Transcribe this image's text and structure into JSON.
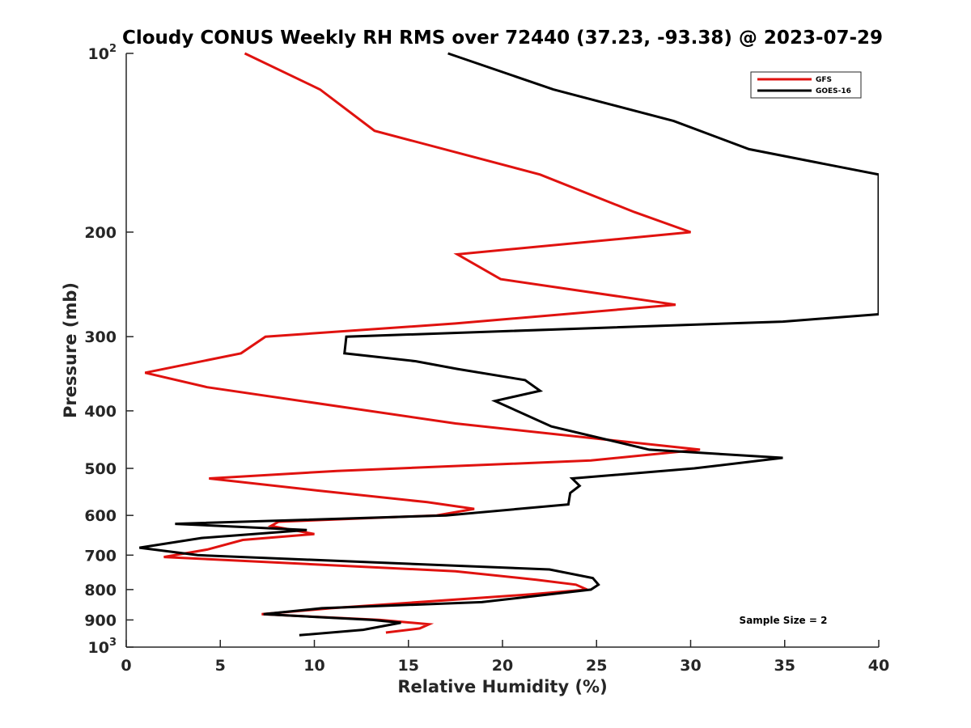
{
  "chart_data": {
    "type": "line",
    "title": "Cloudy CONUS Weekly RH RMS over 72440 (37.23, -93.38) @ 2023-07-29",
    "xlabel": "Relative Humidity (%)",
    "ylabel": "Pressure (mb)",
    "xlim": [
      0,
      40
    ],
    "ylim": [
      100,
      1000
    ],
    "y_scale": "log",
    "y_reversed": true,
    "grid": false,
    "legend_position": "top-right",
    "x_ticks": [
      0,
      5,
      10,
      15,
      20,
      25,
      30,
      35,
      40
    ],
    "y_ticks": [
      {
        "value": 100,
        "base": "10",
        "exp": "2"
      },
      {
        "value": 200,
        "label": "200"
      },
      {
        "value": 300,
        "label": "300"
      },
      {
        "value": 400,
        "label": "400"
      },
      {
        "value": 500,
        "label": "500"
      },
      {
        "value": 600,
        "label": "600"
      },
      {
        "value": 700,
        "label": "700"
      },
      {
        "value": 800,
        "label": "800"
      },
      {
        "value": 900,
        "label": "900"
      },
      {
        "value": 1000,
        "base": "10",
        "exp": "3"
      }
    ],
    "series": [
      {
        "name": "GFS",
        "color": "#e0120f",
        "x": [
          6.3,
          10.3,
          13.2,
          22,
          27,
          30,
          17.6,
          19.9,
          29.2,
          17.5,
          7.4,
          6.1,
          1.0,
          4.3,
          17.5,
          30.5,
          24.7,
          11.2,
          4.4,
          10.2,
          16,
          18.5,
          16.5,
          8.1,
          7.7,
          10,
          6.2,
          4.3,
          2.0,
          17.5,
          21.8,
          23.9,
          24.5,
          21.5,
          10.9,
          7.2,
          13.5,
          16.1,
          15.6,
          13.8
        ],
        "y": [
          100,
          115,
          135,
          160,
          185,
          200,
          218,
          240,
          265,
          285,
          300,
          320,
          345,
          365,
          420,
          465,
          485,
          505,
          520,
          545,
          570,
          585,
          600,
          615,
          625,
          645,
          660,
          685,
          705,
          745,
          770,
          785,
          800,
          815,
          860,
          880,
          900,
          915,
          930,
          945
        ]
      },
      {
        "name": "GOES-16",
        "color": "#000000",
        "x": [
          17.1,
          22.7,
          29.1,
          33.1,
          40.0,
          40.0,
          34.9,
          11.7,
          11.6,
          15.4,
          17.6,
          21.2,
          22.0,
          19.6,
          22.6,
          27.8,
          34.9,
          30.2,
          23.7,
          24.1,
          23.6,
          23.5,
          17.0,
          2.6,
          9.6,
          4.0,
          0.7,
          3.8,
          13.2,
          22.5,
          24.8,
          25.1,
          24.7,
          18.9,
          10.4,
          7.3,
          13.1,
          14.6,
          12.6,
          9.2
        ],
        "y": [
          100,
          115,
          130,
          145,
          160,
          275,
          283,
          300,
          320,
          330,
          340,
          355,
          370,
          385,
          425,
          465,
          480,
          500,
          520,
          535,
          550,
          575,
          600,
          620,
          635,
          655,
          680,
          700,
          720,
          740,
          765,
          785,
          800,
          840,
          860,
          880,
          900,
          910,
          935,
          955
        ]
      }
    ],
    "annotations": [
      "Sample Size = 2"
    ]
  }
}
